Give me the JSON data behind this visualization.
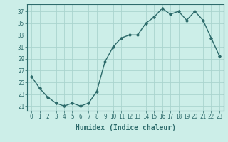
{
  "x": [
    0,
    1,
    2,
    3,
    4,
    5,
    6,
    7,
    8,
    9,
    10,
    11,
    12,
    13,
    14,
    15,
    16,
    17,
    18,
    19,
    20,
    21,
    22,
    23
  ],
  "y": [
    26,
    24,
    22.5,
    21.5,
    21,
    21.5,
    21,
    21.5,
    23.5,
    28.5,
    31,
    32.5,
    33,
    33,
    35,
    36,
    37.5,
    36.5,
    37,
    35.5,
    37,
    35.5,
    32.5,
    29.5
  ],
  "line_color": "#2d6b6b",
  "marker": "D",
  "marker_size": 1.8,
  "bg_color": "#cceee8",
  "grid_color": "#aad4ce",
  "tick_color": "#2d6b6b",
  "xlabel": "Humidex (Indice chaleur)",
  "xlabel_fontsize": 7,
  "ylabel_ticks": [
    21,
    23,
    25,
    27,
    29,
    31,
    33,
    35,
    37
  ],
  "ylim": [
    20.2,
    38.2
  ],
  "xlim": [
    -0.5,
    23.5
  ],
  "xticks": [
    0,
    1,
    2,
    3,
    4,
    5,
    6,
    7,
    8,
    9,
    10,
    11,
    12,
    13,
    14,
    15,
    16,
    17,
    18,
    19,
    20,
    21,
    22,
    23
  ],
  "xtick_labels": [
    "0",
    "1",
    "2",
    "3",
    "4",
    "5",
    "6",
    "7",
    "8",
    "9",
    "10",
    "11",
    "12",
    "13",
    "14",
    "15",
    "16",
    "17",
    "18",
    "19",
    "20",
    "21",
    "22",
    "23"
  ],
  "tick_fontsize": 5.5,
  "line_width": 1.0
}
